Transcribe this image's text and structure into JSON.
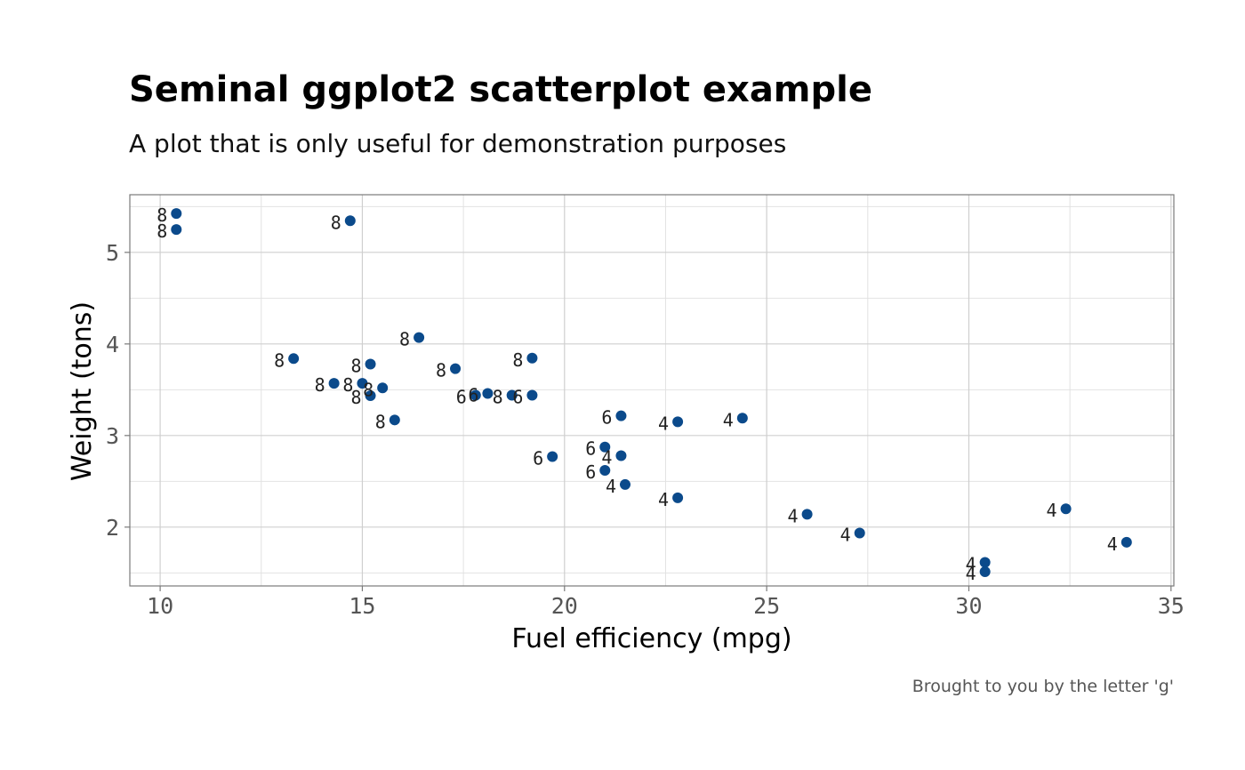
{
  "chart_data": {
    "type": "scatter",
    "title": "Seminal ggplot2 scatterplot example",
    "subtitle": "A plot that is only useful for demonstration purposes",
    "xlabel": "Fuel efficiency (mpg)",
    "ylabel": "Weight (tons)",
    "caption": "Brought to you by the letter 'g'",
    "xlim": [
      9.25,
      35.07
    ],
    "ylim": [
      1.3575,
      5.6295
    ],
    "x_ticks": [
      10,
      15,
      20,
      25,
      30,
      35
    ],
    "y_ticks": [
      2,
      3,
      4,
      5
    ],
    "x_tick_labels": [
      "10",
      "15",
      "20",
      "25",
      "30",
      "35"
    ],
    "y_tick_labels": [
      "2",
      "3",
      "4",
      "5"
    ],
    "grid": true,
    "legend": "none",
    "point_color": "#0b4a8b",
    "points": [
      {
        "x": 21.0,
        "y": 2.62,
        "label": "6"
      },
      {
        "x": 21.0,
        "y": 2.875,
        "label": "6"
      },
      {
        "x": 22.8,
        "y": 2.32,
        "label": "4"
      },
      {
        "x": 21.4,
        "y": 3.215,
        "label": "6"
      },
      {
        "x": 18.7,
        "y": 3.44,
        "label": "8"
      },
      {
        "x": 18.1,
        "y": 3.46,
        "label": "6"
      },
      {
        "x": 14.3,
        "y": 3.57,
        "label": "8"
      },
      {
        "x": 24.4,
        "y": 3.19,
        "label": "4"
      },
      {
        "x": 22.8,
        "y": 3.15,
        "label": "4"
      },
      {
        "x": 19.2,
        "y": 3.44,
        "label": "6"
      },
      {
        "x": 17.8,
        "y": 3.44,
        "label": "6"
      },
      {
        "x": 16.4,
        "y": 4.07,
        "label": "8"
      },
      {
        "x": 17.3,
        "y": 3.73,
        "label": "8"
      },
      {
        "x": 15.2,
        "y": 3.78,
        "label": "8"
      },
      {
        "x": 10.4,
        "y": 5.25,
        "label": "8"
      },
      {
        "x": 10.4,
        "y": 5.424,
        "label": "8"
      },
      {
        "x": 14.7,
        "y": 5.345,
        "label": "8"
      },
      {
        "x": 32.4,
        "y": 2.2,
        "label": "4"
      },
      {
        "x": 30.4,
        "y": 1.615,
        "label": "4"
      },
      {
        "x": 33.9,
        "y": 1.835,
        "label": "4"
      },
      {
        "x": 21.5,
        "y": 2.465,
        "label": "4"
      },
      {
        "x": 15.5,
        "y": 3.52,
        "label": "8"
      },
      {
        "x": 15.2,
        "y": 3.435,
        "label": "8"
      },
      {
        "x": 13.3,
        "y": 3.84,
        "label": "8"
      },
      {
        "x": 19.2,
        "y": 3.845,
        "label": "8"
      },
      {
        "x": 27.3,
        "y": 1.935,
        "label": "4"
      },
      {
        "x": 26.0,
        "y": 2.14,
        "label": "4"
      },
      {
        "x": 30.4,
        "y": 1.513,
        "label": "4"
      },
      {
        "x": 15.8,
        "y": 3.17,
        "label": "8"
      },
      {
        "x": 19.7,
        "y": 2.77,
        "label": "6"
      },
      {
        "x": 15.0,
        "y": 3.57,
        "label": "8"
      },
      {
        "x": 21.4,
        "y": 2.78,
        "label": "4"
      }
    ]
  }
}
